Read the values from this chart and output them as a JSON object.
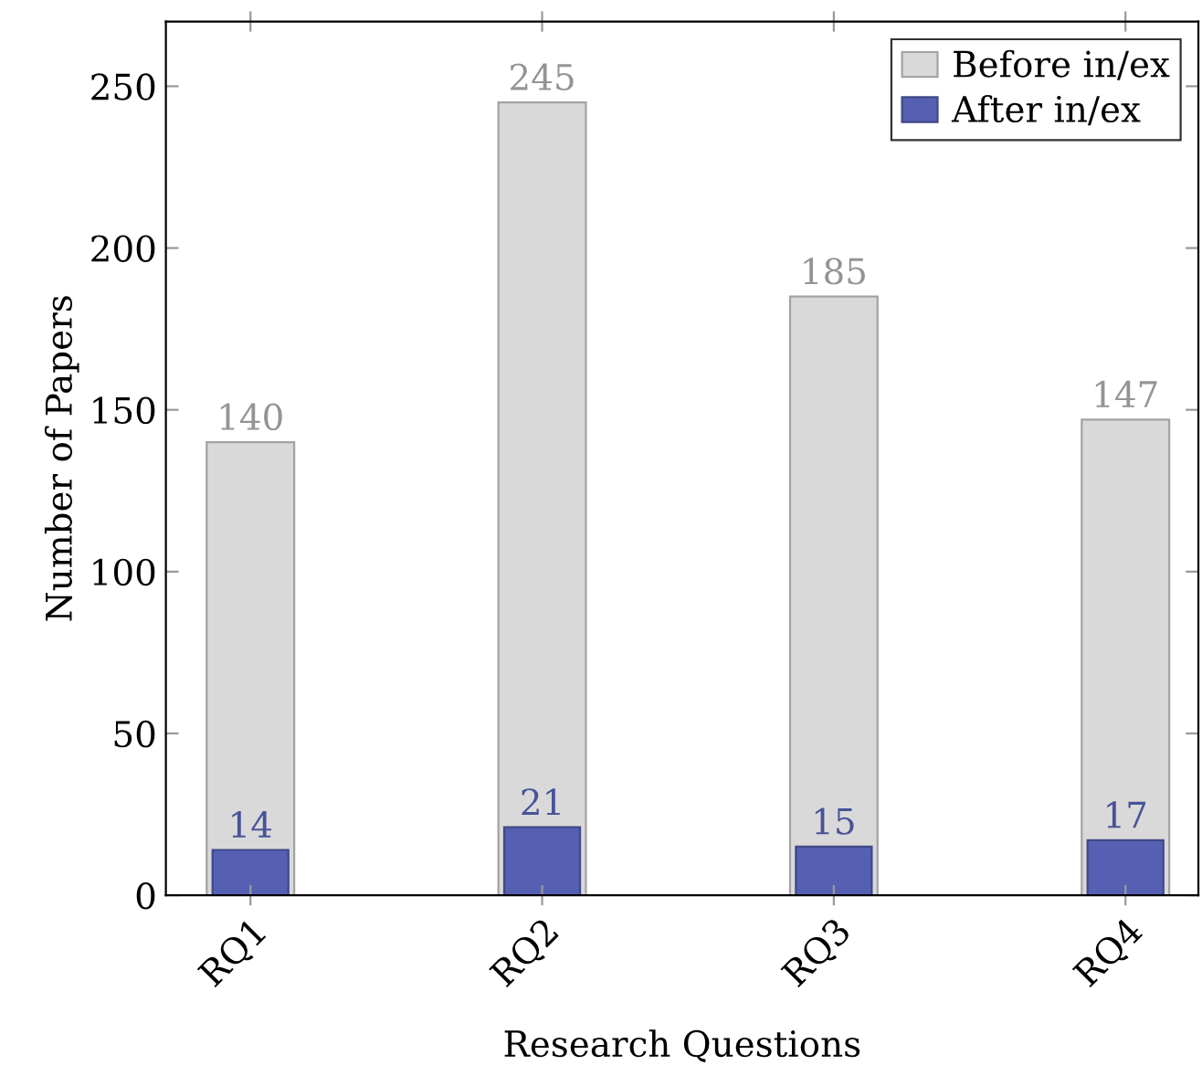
{
  "chart_data": {
    "type": "bar",
    "xlabel": "Research Questions",
    "ylabel": "Number of Papers",
    "categories": [
      "RQ1",
      "RQ2",
      "RQ3",
      "RQ4"
    ],
    "series": [
      {
        "name": "Before in/ex",
        "color": "#d9d9d9",
        "values": [
          140,
          245,
          185,
          147
        ]
      },
      {
        "name": "After in/ex",
        "color": "#5560b3",
        "values": [
          14,
          21,
          15,
          17
        ]
      }
    ],
    "ylim": [
      0,
      270
    ],
    "yticks": [
      0,
      50,
      100,
      150,
      200,
      250
    ],
    "data_labels": true,
    "legend": "top right",
    "grid": false
  }
}
